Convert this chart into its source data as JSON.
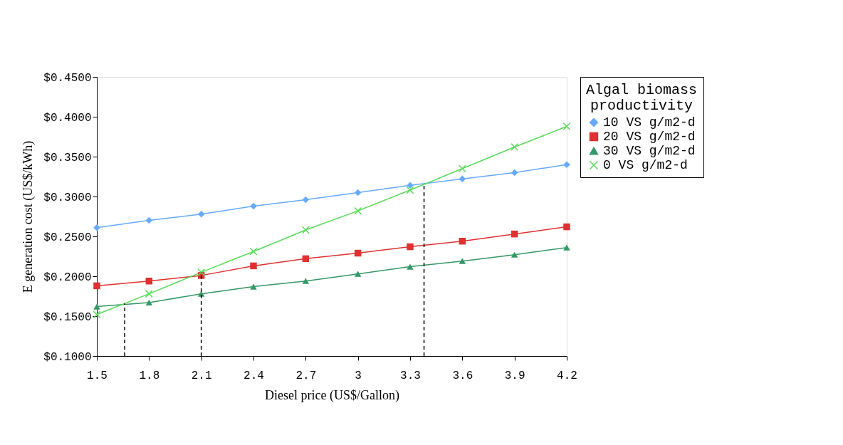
{
  "chart_data": {
    "type": "line",
    "xlabel": "Diesel price (US$/Gallon)",
    "ylabel": "E generation cost (US$/kWh)",
    "legend_title": "Algal biomass productivity",
    "x": [
      1.5,
      1.8,
      2.1,
      2.4,
      2.7,
      3.0,
      3.3,
      3.6,
      3.9,
      4.2
    ],
    "xlim": [
      1.5,
      4.2
    ],
    "xticks": [
      1.5,
      1.8,
      2.1,
      2.4,
      2.7,
      3,
      3.3,
      3.6,
      3.9,
      4.2
    ],
    "ylim": [
      0.1,
      0.45
    ],
    "yticks": [
      {
        "value": 0.1,
        "label": "$0.1000"
      },
      {
        "value": 0.15,
        "label": "$0.1500"
      },
      {
        "value": 0.2,
        "label": "$0.2000"
      },
      {
        "value": 0.25,
        "label": "$0.2500"
      },
      {
        "value": 0.3,
        "label": "$0.3000"
      },
      {
        "value": 0.35,
        "label": "$0.3500"
      },
      {
        "value": 0.4,
        "label": "$0.4000"
      },
      {
        "value": 0.45,
        "label": "$0.4500"
      }
    ],
    "series": [
      {
        "name": "10 VS g/m2-d",
        "color": "#66aaff",
        "marker": "diamond",
        "values": [
          0.261,
          0.27,
          0.278,
          0.288,
          0.296,
          0.305,
          0.314,
          0.322,
          0.33,
          0.34
        ]
      },
      {
        "name": "20 VS g/m2-d",
        "color": "#e03030",
        "marker": "square",
        "values": [
          0.188,
          0.194,
          0.201,
          0.213,
          0.222,
          0.229,
          0.237,
          0.244,
          0.253,
          0.262
        ]
      },
      {
        "name": "30 VS g/m2-d",
        "color": "#339966",
        "marker": "triangle",
        "values": [
          0.162,
          0.167,
          0.178,
          0.187,
          0.194,
          0.203,
          0.212,
          0.219,
          0.227,
          0.236
        ]
      },
      {
        "name": "0 VS g/m2-d",
        "color": "#55dd55",
        "marker": "cross",
        "values": [
          0.152,
          0.178,
          0.205,
          0.231,
          0.258,
          0.282,
          0.308,
          0.335,
          0.362,
          0.388
        ]
      }
    ],
    "ref_lines": [
      {
        "axis": "x",
        "value": 1.66,
        "color": "#000000",
        "line_style": "dashed"
      },
      {
        "axis": "x",
        "value": 2.1,
        "color": "#000000",
        "line_style": "dashed"
      },
      {
        "axis": "x",
        "value": 3.38,
        "color": "#000000",
        "line_style": "dashed"
      }
    ],
    "grid": false,
    "legend": "right",
    "line_style": "solid"
  }
}
